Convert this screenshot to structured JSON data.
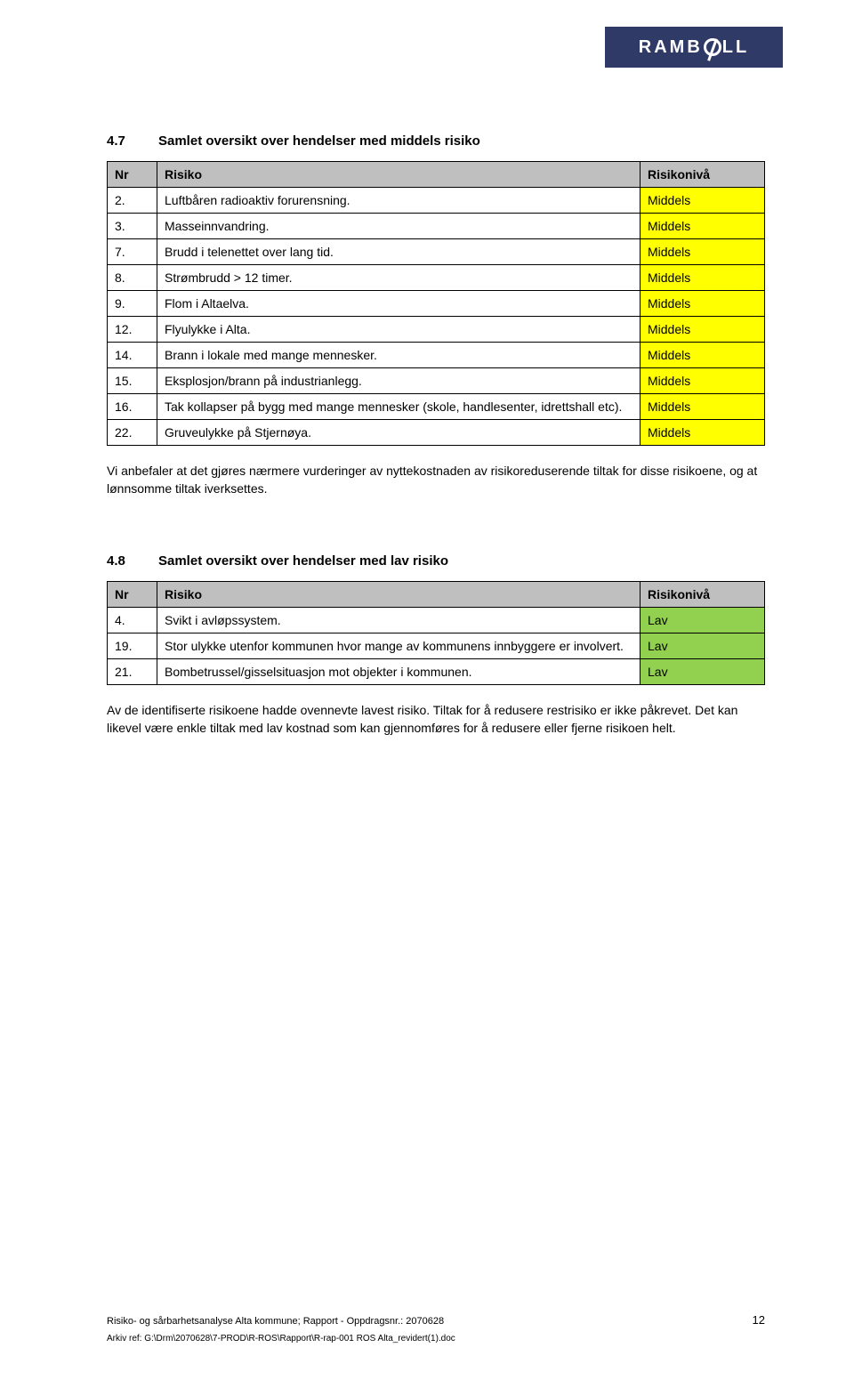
{
  "logo": {
    "text_left": "RAMB",
    "text_right": "LL"
  },
  "colors": {
    "header_bg": "#bfbfbf",
    "middels_bg": "#ffff00",
    "lav_bg": "#92d050",
    "border": "#000000",
    "logo_bg": "#2f3a66"
  },
  "section47": {
    "number": "4.7",
    "title": "Samlet oversikt over hendelser med middels risiko",
    "headers": {
      "nr": "Nr",
      "risiko": "Risiko",
      "nivaa": "Risikonivå"
    },
    "rows": [
      {
        "nr": "2.",
        "risiko": "Luftbåren radioaktiv forurensning.",
        "nivaa": "Middels"
      },
      {
        "nr": "3.",
        "risiko": "Masseinnvandring.",
        "nivaa": "Middels"
      },
      {
        "nr": "7.",
        "risiko": "Brudd i telenettet over lang tid.",
        "nivaa": "Middels"
      },
      {
        "nr": "8.",
        "risiko": "Strømbrudd > 12 timer.",
        "nivaa": "Middels"
      },
      {
        "nr": "9.",
        "risiko": "Flom i Altaelva.",
        "nivaa": "Middels"
      },
      {
        "nr": "12.",
        "risiko": "Flyulykke i Alta.",
        "nivaa": "Middels"
      },
      {
        "nr": "14.",
        "risiko": "Brann i lokale med mange mennesker.",
        "nivaa": "Middels"
      },
      {
        "nr": "15.",
        "risiko": "Eksplosjon/brann på industrianlegg.",
        "nivaa": "Middels"
      },
      {
        "nr": "16.",
        "risiko": "Tak kollapser på bygg med mange mennesker (skole, handlesenter, idrettshall etc).",
        "nivaa": "Middels"
      },
      {
        "nr": "22.",
        "risiko": "Gruveulykke på Stjernøya.",
        "nivaa": "Middels"
      }
    ],
    "paragraph": "Vi anbefaler at det gjøres nærmere vurderinger av nyttekostnaden av risikoreduserende tiltak for disse risikoene, og at lønnsomme tiltak iverksettes."
  },
  "section48": {
    "number": "4.8",
    "title": "Samlet oversikt over hendelser med lav risiko",
    "headers": {
      "nr": "Nr",
      "risiko": "Risiko",
      "nivaa": "Risikonivå"
    },
    "rows": [
      {
        "nr": "4.",
        "risiko": "Svikt i avløpssystem.",
        "nivaa": "Lav"
      },
      {
        "nr": "19.",
        "risiko": "Stor ulykke utenfor kommunen hvor mange av kommunens innbyggere er involvert.",
        "nivaa": "Lav"
      },
      {
        "nr": "21.",
        "risiko": "Bombetrussel/gisselsituasjon mot objekter i kommunen.",
        "nivaa": "Lav"
      }
    ],
    "paragraph": "Av de identifiserte risikoene hadde ovennevte lavest risiko. Tiltak for å redusere restrisiko er ikke påkrevet. Det kan likevel være enkle tiltak med lav kostnad som kan gjennomføres for å redusere eller fjerne risikoen helt."
  },
  "footer": {
    "line1": "Risiko- og sårbarhetsanalyse Alta kommune; Rapport - Oppdragsnr.: 2070628",
    "page": "12",
    "line2": "Arkiv ref: G:\\Drm\\2070628\\7-PROD\\R-ROS\\Rapport\\R-rap-001 ROS Alta_revidert(1).doc"
  }
}
